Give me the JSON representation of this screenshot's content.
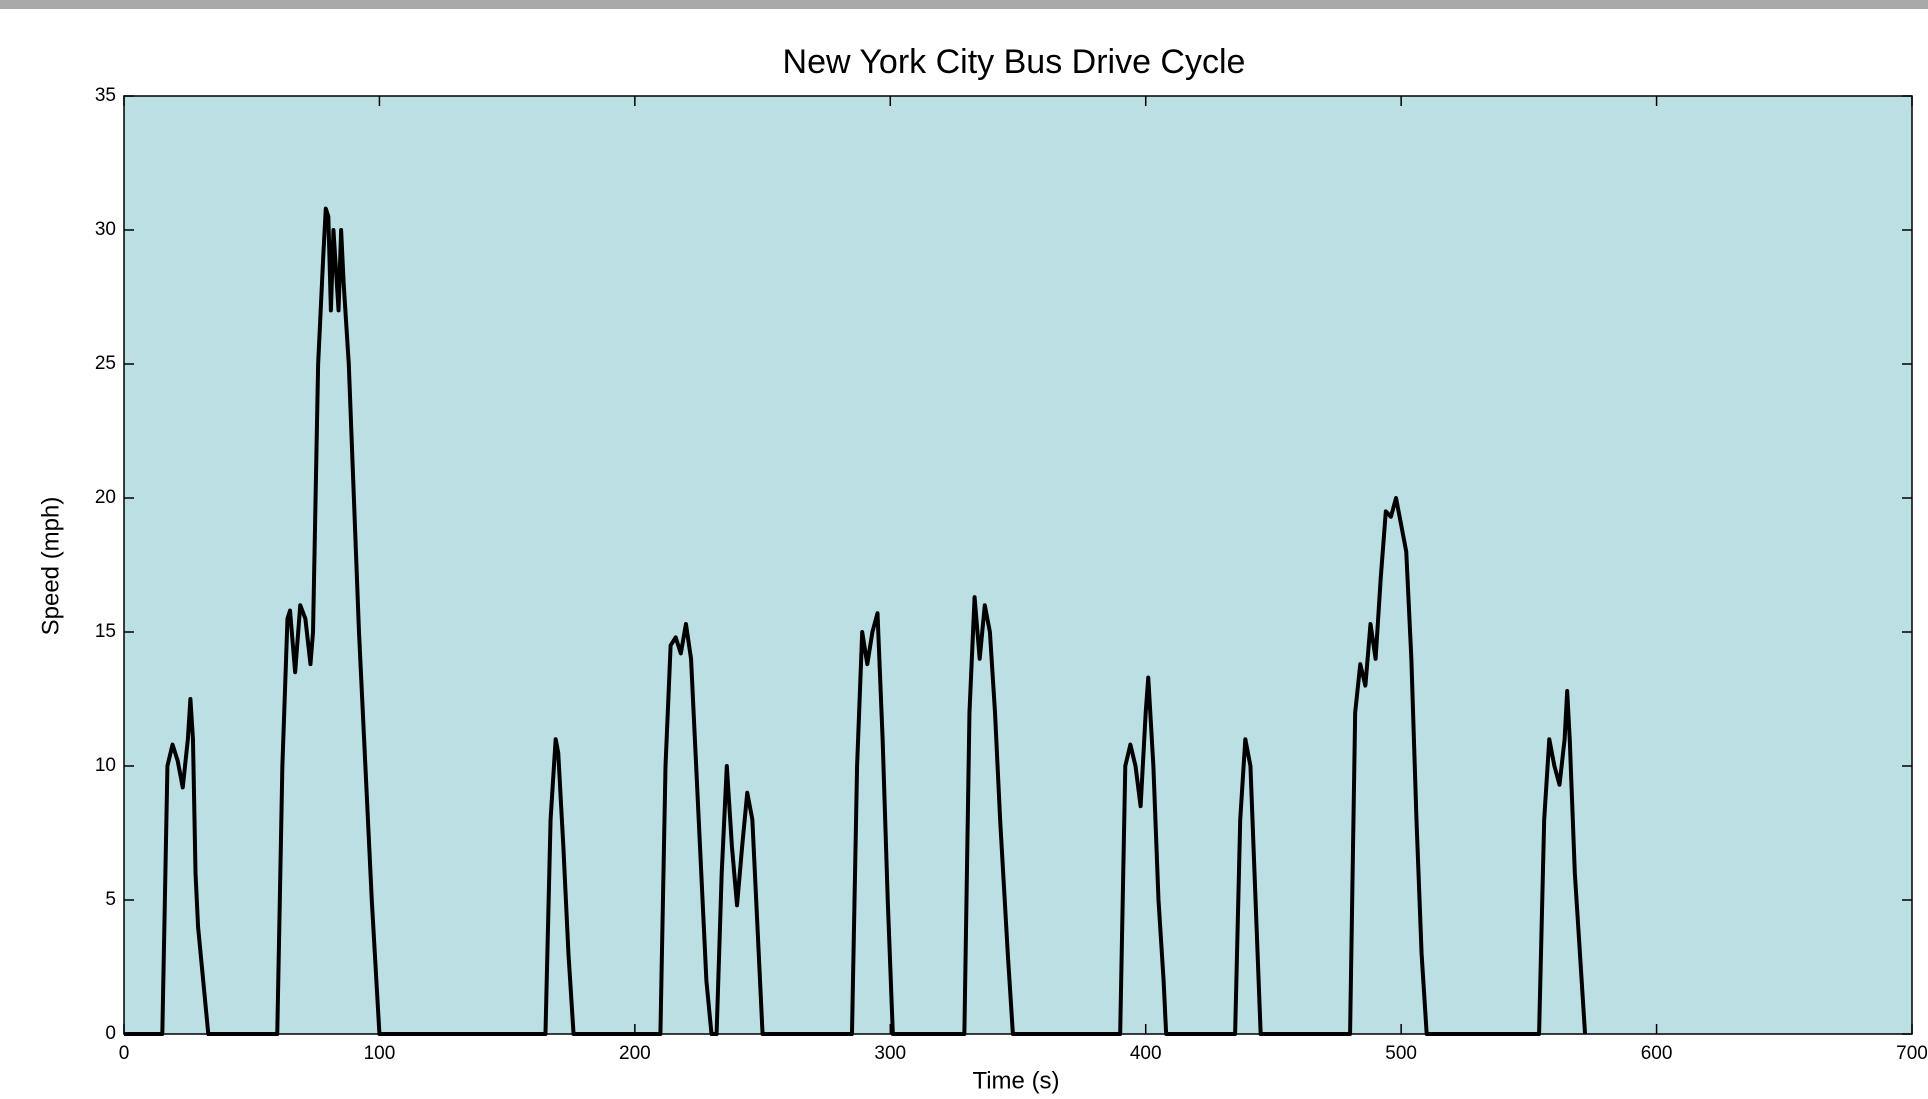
{
  "chart_data": {
    "type": "line",
    "title": "New York City Bus Drive Cycle",
    "x_label": "Time (s)",
    "y_label": "Speed (mph)",
    "x": [
      0,
      15,
      16,
      17,
      19,
      21,
      23,
      25,
      26,
      27,
      28,
      29,
      31,
      33,
      60,
      62,
      64,
      65,
      67,
      69,
      71,
      73,
      74,
      76,
      78,
      79,
      80,
      81,
      82,
      84,
      85,
      86,
      88,
      90,
      92,
      94,
      97,
      100,
      165,
      167,
      169,
      170,
      172,
      174,
      176,
      210,
      212,
      214,
      216,
      218,
      220,
      222,
      224,
      226,
      228,
      230,
      232,
      234,
      236,
      238,
      240,
      242,
      244,
      246,
      248,
      250,
      285,
      287,
      289,
      291,
      293,
      295,
      297,
      299,
      301,
      329,
      331,
      333,
      335,
      337,
      339,
      341,
      343,
      346,
      348,
      390,
      392,
      394,
      396,
      398,
      400,
      401,
      403,
      405,
      407,
      408,
      435,
      437,
      439,
      441,
      443,
      445,
      480,
      482,
      484,
      486,
      488,
      490,
      492,
      494,
      496,
      498,
      500,
      502,
      504,
      506,
      508,
      510,
      554,
      556,
      558,
      560,
      562,
      564,
      565,
      566,
      568,
      570,
      572
    ],
    "series": [
      {
        "name": "Speed",
        "color": "#000000",
        "values": [
          0,
          0,
          5,
          10,
          10.8,
          10.2,
          9.2,
          11,
          12.5,
          11,
          6,
          4,
          2,
          0,
          0,
          10,
          15.5,
          15.8,
          13.5,
          16,
          15.5,
          13.8,
          15,
          25,
          29,
          30.8,
          30.5,
          27,
          30,
          27,
          30,
          28,
          25,
          20,
          15,
          11,
          5,
          0,
          0,
          8,
          11,
          10.5,
          7,
          3,
          0,
          0,
          10,
          14.5,
          14.8,
          14.2,
          15.3,
          14,
          10,
          6,
          2,
          0,
          0,
          6,
          10,
          7,
          4.8,
          7,
          9,
          8,
          4,
          0,
          0,
          10,
          15,
          13.8,
          15,
          15.7,
          11,
          5,
          0,
          0,
          12,
          16.3,
          14,
          16,
          15,
          12,
          8,
          3,
          0,
          0,
          10,
          10.8,
          10,
          8.5,
          12,
          13.3,
          10,
          5,
          2,
          0,
          0,
          8,
          11,
          10,
          5,
          0,
          0,
          12,
          13.8,
          13,
          15.3,
          14,
          17,
          19.5,
          19.3,
          20,
          19,
          18,
          14,
          8,
          3,
          0,
          0,
          8,
          11,
          10,
          9.3,
          11,
          12.8,
          11,
          6,
          3,
          0
        ]
      }
    ],
    "xlim": [
      0,
      700
    ],
    "ylim": [
      0,
      35
    ],
    "xticks": [
      0,
      100,
      200,
      300,
      400,
      500,
      600,
      700
    ],
    "yticks": [
      0,
      5,
      10,
      15,
      20,
      25,
      30,
      35
    ],
    "background": "#bcdfe3"
  }
}
